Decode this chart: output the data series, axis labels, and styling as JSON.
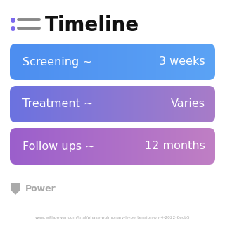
{
  "title": "Timeline",
  "title_fontsize": 20,
  "title_fontweight": "bold",
  "title_color": "#111111",
  "icon_color": "#7B68EE",
  "background_color": "#ffffff",
  "rows": [
    {
      "label": "Screening ~",
      "value": "3 weeks",
      "color_left": "#4d8ef0",
      "color_right": "#5ba3f5"
    },
    {
      "label": "Treatment ~",
      "value": "Varies",
      "color_left": "#6b72e0",
      "color_right": "#a87cc8"
    },
    {
      "label": "Follow ups ~",
      "value": "12 months",
      "color_left": "#9b5fcc",
      "color_right": "#c07fc4"
    }
  ],
  "footer_text": "Power",
  "url_text": "www.withpower.com/trial/phase-pulmonary-hypertension-ph-4-2022-6ecb5",
  "footer_color": "#aaaaaa",
  "url_color": "#aaaaaa",
  "row_text_color": "#ffffff",
  "row_fontsize": 11.5,
  "row_value_fontsize": 11.5
}
